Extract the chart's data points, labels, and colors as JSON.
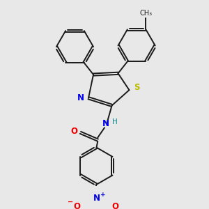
{
  "bg_color": "#e8e8e8",
  "fig_size": [
    3.0,
    3.0
  ],
  "dpi": 100,
  "bond_color": "#1a1a1a",
  "bond_width": 1.4,
  "dbo": 0.018,
  "atom_colors": {
    "N": "#0000ee",
    "O": "#ee0000",
    "S": "#bbbb00",
    "H": "#008888",
    "C": "#1a1a1a"
  },
  "font_size": 8.5,
  "font_size_h": 7.5,
  "font_size_ch3": 7.0
}
